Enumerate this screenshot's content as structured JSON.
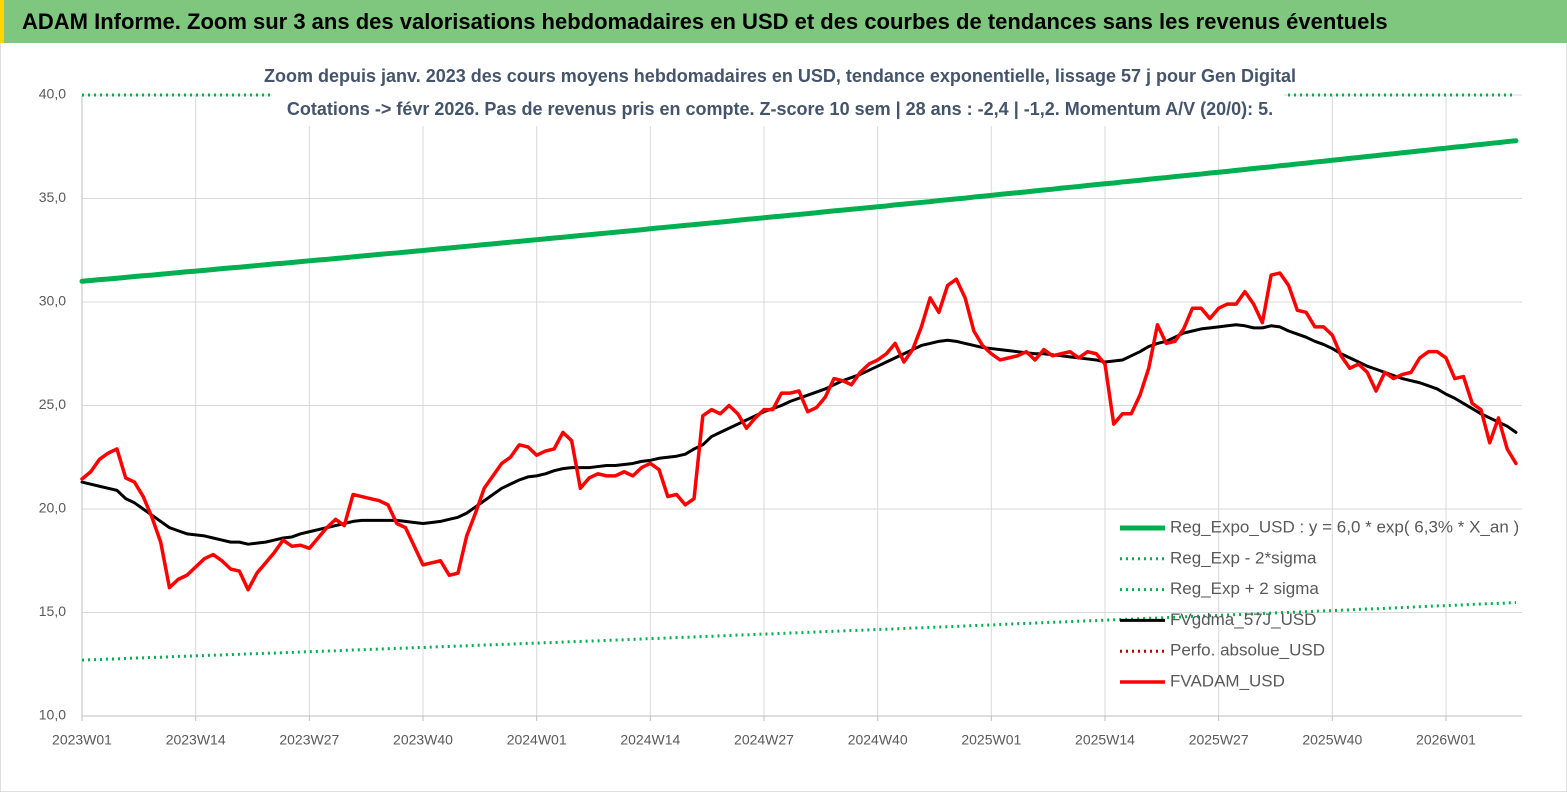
{
  "header": {
    "title": "ADAM Informe. Zoom sur 3 ans des valorisations hebdomadaires en USD et des courbes de tendances sans les revenus éventuels"
  },
  "chart_data": {
    "type": "line",
    "title": "Zoom depuis janv. 2023 des cours moyens hebdomadaires en USD, tendance exponentielle, lissage 57 j pour Gen Digital",
    "subtitle": "Cotations -> févr 2026.  Pas de revenus pris en compte. Z-score 10 sem | 28 ans : -2,4 | -1,2. Momentum A/V (20/0): 5.",
    "grid": true,
    "legend": "lower-right",
    "ylim": [
      10,
      40
    ],
    "yticks": [
      {
        "value": 10,
        "label": "10,0"
      },
      {
        "value": 15,
        "label": "15,0"
      },
      {
        "value": 20,
        "label": "20,0"
      },
      {
        "value": 25,
        "label": "25,0"
      },
      {
        "value": 30,
        "label": "30,0"
      },
      {
        "value": 35,
        "label": "35,0"
      },
      {
        "value": 40,
        "label": "40,0"
      }
    ],
    "categories": [
      "2023W01",
      null,
      null,
      null,
      null,
      null,
      null,
      null,
      null,
      null,
      null,
      null,
      null,
      "2023W14",
      null,
      null,
      null,
      null,
      null,
      null,
      null,
      null,
      null,
      null,
      null,
      null,
      "2023W27",
      null,
      null,
      null,
      null,
      null,
      null,
      null,
      null,
      null,
      null,
      null,
      null,
      "2023W40",
      null,
      null,
      null,
      null,
      null,
      null,
      null,
      null,
      null,
      null,
      null,
      null,
      "2024W01",
      null,
      null,
      null,
      null,
      null,
      null,
      null,
      null,
      null,
      null,
      null,
      null,
      "2024W14",
      null,
      null,
      null,
      null,
      null,
      null,
      null,
      null,
      null,
      null,
      null,
      null,
      "2024W27",
      null,
      null,
      null,
      null,
      null,
      null,
      null,
      null,
      null,
      null,
      null,
      null,
      "2024W40",
      null,
      null,
      null,
      null,
      null,
      null,
      null,
      null,
      null,
      null,
      null,
      null,
      "2025W01",
      null,
      null,
      null,
      null,
      null,
      null,
      null,
      null,
      null,
      null,
      null,
      null,
      "2025W14",
      null,
      null,
      null,
      null,
      null,
      null,
      null,
      null,
      null,
      null,
      null,
      null,
      "2025W27",
      null,
      null,
      null,
      null,
      null,
      null,
      null,
      null,
      null,
      null,
      null,
      null,
      "2025W40",
      null,
      null,
      null,
      null,
      null,
      null,
      null,
      null,
      null,
      null,
      null,
      null,
      "2026W01",
      null,
      null,
      null,
      null,
      null,
      null,
      null,
      null
    ],
    "series": [
      {
        "name": "Reg_Expo_USD : y = 6,0 * exp( 6,3% *  X_an )",
        "color": "#00b050",
        "style": "solid",
        "values": [
          31.0,
          31.04,
          31.08,
          31.11,
          31.15,
          31.19,
          31.23,
          31.27,
          31.3,
          31.34,
          31.38,
          31.42,
          31.46,
          31.49,
          31.53,
          31.57,
          31.61,
          31.65,
          31.68,
          31.72,
          31.76,
          31.8,
          31.84,
          31.87,
          31.91,
          31.95,
          31.99,
          32.03,
          32.06,
          32.1,
          32.14,
          32.18,
          32.22,
          32.26,
          32.3,
          32.34,
          32.37,
          32.41,
          32.45,
          32.49,
          32.53,
          32.57,
          32.61,
          32.65,
          32.69,
          32.73,
          32.77,
          32.81,
          32.85,
          32.89,
          32.93,
          32.97,
          33.01,
          33.05,
          33.09,
          33.13,
          33.17,
          33.21,
          33.25,
          33.29,
          33.33,
          33.37,
          33.41,
          33.45,
          33.49,
          33.54,
          33.58,
          33.62,
          33.66,
          33.7,
          33.74,
          33.78,
          33.82,
          33.86,
          33.9,
          33.95,
          33.99,
          34.03,
          34.07,
          34.11,
          34.15,
          34.19,
          34.23,
          34.27,
          34.31,
          34.36,
          34.4,
          34.44,
          34.48,
          34.52,
          34.56,
          34.6,
          34.64,
          34.69,
          34.73,
          34.77,
          34.81,
          34.85,
          34.9,
          34.94,
          34.98,
          35.02,
          35.07,
          35.11,
          35.15,
          35.2,
          35.24,
          35.28,
          35.32,
          35.37,
          35.41,
          35.45,
          35.5,
          35.54,
          35.58,
          35.63,
          35.67,
          35.71,
          35.75,
          35.8,
          35.84,
          35.88,
          35.93,
          35.97,
          36.01,
          36.06,
          36.1,
          36.14,
          36.18,
          36.23,
          36.27,
          36.31,
          36.36,
          36.4,
          36.45,
          36.49,
          36.53,
          36.58,
          36.62,
          36.67,
          36.71,
          36.76,
          36.8,
          36.85,
          36.89,
          36.94,
          36.98,
          37.03,
          37.07,
          37.12,
          37.16,
          37.21,
          37.25,
          37.3,
          37.34,
          37.39,
          37.43,
          37.48,
          37.52,
          37.57,
          37.61,
          37.66,
          37.7,
          37.75,
          37.79
        ]
      },
      {
        "name": "Reg_Exp - 2*sigma",
        "color": "#00b050",
        "style": "dotted",
        "values": [
          12.7,
          12.72,
          12.73,
          12.75,
          12.76,
          12.78,
          12.8,
          12.81,
          12.83,
          12.84,
          12.86,
          12.88,
          12.89,
          12.91,
          12.92,
          12.94,
          12.95,
          12.97,
          12.98,
          13.0,
          13.01,
          13.03,
          13.04,
          13.06,
          13.07,
          13.09,
          13.11,
          13.12,
          13.14,
          13.15,
          13.17,
          13.19,
          13.2,
          13.22,
          13.23,
          13.25,
          13.27,
          13.28,
          13.3,
          13.31,
          13.33,
          13.35,
          13.36,
          13.38,
          13.39,
          13.41,
          13.43,
          13.44,
          13.46,
          13.47,
          13.49,
          13.51,
          13.52,
          13.54,
          13.55,
          13.57,
          13.59,
          13.6,
          13.62,
          13.63,
          13.65,
          13.67,
          13.68,
          13.7,
          13.72,
          13.74,
          13.75,
          13.77,
          13.79,
          13.8,
          13.82,
          13.84,
          13.85,
          13.87,
          13.89,
          13.91,
          13.92,
          13.94,
          13.96,
          13.97,
          13.99,
          14.01,
          14.02,
          14.04,
          14.06,
          14.08,
          14.09,
          14.11,
          14.13,
          14.14,
          14.16,
          14.18,
          14.19,
          14.21,
          14.23,
          14.25,
          14.26,
          14.28,
          14.3,
          14.31,
          14.33,
          14.35,
          14.37,
          14.38,
          14.4,
          14.42,
          14.44,
          14.46,
          14.47,
          14.49,
          14.51,
          14.53,
          14.54,
          14.56,
          14.58,
          14.6,
          14.61,
          14.63,
          14.65,
          14.66,
          14.68,
          14.7,
          14.72,
          14.73,
          14.75,
          14.77,
          14.79,
          14.81,
          14.82,
          14.84,
          14.86,
          14.88,
          14.9,
          14.91,
          14.93,
          14.95,
          14.97,
          14.99,
          15.0,
          15.02,
          15.04,
          15.06,
          15.08,
          15.09,
          15.11,
          15.13,
          15.15,
          15.17,
          15.18,
          15.2,
          15.22,
          15.24,
          15.26,
          15.28,
          15.3,
          15.32,
          15.33,
          15.35,
          15.37,
          15.39,
          15.41,
          15.43,
          15.44,
          15.46,
          15.48
        ]
      },
      {
        "name": "Reg_Exp + 2 sigma",
        "color": "#00b050",
        "style": "dotted",
        "values": [
          40,
          40,
          40,
          40,
          40,
          40,
          40,
          40,
          40,
          40,
          40,
          40,
          40,
          40,
          40,
          40,
          40,
          40,
          40,
          40,
          40,
          40,
          40,
          40,
          40,
          40,
          40,
          40,
          40,
          40,
          40,
          40,
          40,
          40,
          40,
          40,
          40,
          40,
          40,
          40,
          40,
          40,
          40,
          40,
          40,
          40,
          40,
          40,
          40,
          40,
          40,
          40,
          40,
          40,
          40,
          40,
          40,
          40,
          40,
          40,
          40,
          40,
          40,
          40,
          40,
          40,
          40,
          40,
          40,
          40,
          40,
          40,
          40,
          40,
          40,
          40,
          40,
          40,
          40,
          40,
          40,
          40,
          40,
          40,
          40,
          40,
          40,
          40,
          40,
          40,
          40,
          40,
          40,
          40,
          40,
          40,
          40,
          40,
          40,
          40,
          40,
          40,
          40,
          40,
          40,
          40,
          40,
          40,
          40,
          40,
          40,
          40,
          40,
          40,
          40,
          40,
          40,
          40,
          40,
          40,
          40,
          40,
          40,
          40,
          40,
          40,
          40,
          40,
          40,
          40,
          40,
          40,
          40,
          40,
          40,
          40,
          40,
          40,
          40,
          40,
          40,
          40,
          40,
          40,
          40,
          40,
          40,
          40,
          40,
          40,
          40,
          40,
          40,
          40,
          40,
          40,
          40,
          40,
          40,
          40,
          40,
          40,
          40,
          40,
          40
        ]
      },
      {
        "name": "FVgdma_57J_USD",
        "color": "#000000",
        "style": "solid",
        "values": [
          21.3,
          21.2,
          21.1,
          21.0,
          20.9,
          20.5,
          20.3,
          20.0,
          19.7,
          19.4,
          19.1,
          18.95,
          18.8,
          18.75,
          18.7,
          18.6,
          18.5,
          18.4,
          18.4,
          18.3,
          18.35,
          18.4,
          18.5,
          18.6,
          18.65,
          18.8,
          18.9,
          19.0,
          19.1,
          19.2,
          19.3,
          19.4,
          19.45,
          19.45,
          19.45,
          19.45,
          19.45,
          19.4,
          19.35,
          19.3,
          19.35,
          19.4,
          19.5,
          19.6,
          19.8,
          20.1,
          20.4,
          20.7,
          21.0,
          21.2,
          21.4,
          21.55,
          21.6,
          21.7,
          21.85,
          21.95,
          22.0,
          22.0,
          22.0,
          22.05,
          22.1,
          22.1,
          22.15,
          22.2,
          22.3,
          22.35,
          22.45,
          22.5,
          22.55,
          22.65,
          22.9,
          23.1,
          23.5,
          23.7,
          23.9,
          24.1,
          24.3,
          24.5,
          24.7,
          24.85,
          25.0,
          25.2,
          25.35,
          25.5,
          25.65,
          25.8,
          26.0,
          26.2,
          26.35,
          26.5,
          26.7,
          26.9,
          27.1,
          27.3,
          27.5,
          27.7,
          27.9,
          28.0,
          28.1,
          28.15,
          28.1,
          28.0,
          27.9,
          27.8,
          27.75,
          27.7,
          27.65,
          27.6,
          27.55,
          27.5,
          27.5,
          27.45,
          27.4,
          27.35,
          27.3,
          27.25,
          27.2,
          27.1,
          27.15,
          27.2,
          27.4,
          27.6,
          27.85,
          28.0,
          28.1,
          28.3,
          28.5,
          28.6,
          28.7,
          28.75,
          28.8,
          28.85,
          28.9,
          28.85,
          28.75,
          28.75,
          28.85,
          28.8,
          28.6,
          28.45,
          28.3,
          28.1,
          27.95,
          27.75,
          27.5,
          27.3,
          27.1,
          26.9,
          26.75,
          26.6,
          26.45,
          26.3,
          26.2,
          26.1,
          25.95,
          25.8,
          25.55,
          25.35,
          25.1,
          24.85,
          24.6,
          24.4,
          24.2,
          24.0,
          23.7
        ]
      },
      {
        "name": "Perfo. absolue_USD",
        "color": "#c00000",
        "style": "dotted"
      },
      {
        "name": "FVADAM_USD",
        "color": "#ff0000",
        "style": "solid",
        "values": [
          21.45,
          21.8,
          22.4,
          22.7,
          22.9,
          21.5,
          21.3,
          20.6,
          19.6,
          18.4,
          16.2,
          16.6,
          16.8,
          17.2,
          17.6,
          17.8,
          17.5,
          17.1,
          17.0,
          16.1,
          16.9,
          17.4,
          17.9,
          18.5,
          18.2,
          18.25,
          18.1,
          18.6,
          19.1,
          19.5,
          19.2,
          20.7,
          20.6,
          20.5,
          20.4,
          20.2,
          19.3,
          19.1,
          18.2,
          17.3,
          17.4,
          17.5,
          16.8,
          16.9,
          18.7,
          19.8,
          21.0,
          21.6,
          22.2,
          22.5,
          23.1,
          23.0,
          22.6,
          22.8,
          22.9,
          23.7,
          23.3,
          21.0,
          21.5,
          21.7,
          21.6,
          21.6,
          21.8,
          21.6,
          22.0,
          22.2,
          21.9,
          20.6,
          20.7,
          20.2,
          20.5,
          24.5,
          24.8,
          24.6,
          25.0,
          24.6,
          23.9,
          24.4,
          24.8,
          24.8,
          25.6,
          25.6,
          25.7,
          24.7,
          24.9,
          25.4,
          26.3,
          26.2,
          26.0,
          26.6,
          27.0,
          27.2,
          27.5,
          28.0,
          27.1,
          27.7,
          28.8,
          30.2,
          29.5,
          30.8,
          31.1,
          30.2,
          28.6,
          27.9,
          27.5,
          27.2,
          27.3,
          27.4,
          27.6,
          27.2,
          27.7,
          27.4,
          27.5,
          27.6,
          27.3,
          27.6,
          27.5,
          27.0,
          24.1,
          24.6,
          24.6,
          25.5,
          26.8,
          28.9,
          28.0,
          28.1,
          28.7,
          29.7,
          29.7,
          29.2,
          29.7,
          29.9,
          29.9,
          30.5,
          29.9,
          29.0,
          31.3,
          31.4,
          30.8,
          29.6,
          29.5,
          28.8,
          28.8,
          28.4,
          27.4,
          26.8,
          27.0,
          26.6,
          25.7,
          26.6,
          26.3,
          26.5,
          26.6,
          27.3,
          27.6,
          27.6,
          27.3,
          26.3,
          26.4,
          25.1,
          24.8,
          23.2,
          24.4,
          22.9,
          22.2
        ]
      }
    ]
  }
}
